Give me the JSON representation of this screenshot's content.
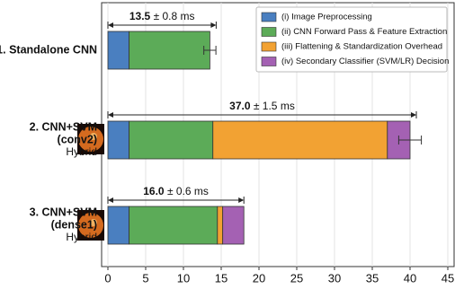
{
  "chart_data": {
    "type": "stacked-bar-horizontal",
    "categories": [
      [
        "1. Standalone CNN"
      ],
      [
        "2. CNN+SVM",
        "(conv2)",
        "Hybrid"
      ],
      [
        "3. CNN+SVM",
        "(dense1)",
        "Hybrid"
      ]
    ],
    "series": [
      {
        "name": "(i) Image Preprocessing",
        "color": "#4a7fc0",
        "values": [
          2.8,
          2.8,
          2.8
        ]
      },
      {
        "name": "(ii) CNN Forward Pass & Feature Extraction",
        "color": "#5cab58",
        "values": [
          10.7,
          11.1,
          11.7
        ]
      },
      {
        "name": "(iii) Flattening & Standardization Overhead",
        "color": "#f2a233",
        "values": [
          0,
          23.1,
          0.7
        ]
      },
      {
        "name": "(iv) Secondary Classifier (SVM/LR) Decision",
        "color": "#a461b3",
        "values": [
          0,
          3.0,
          2.8
        ]
      }
    ],
    "annotations": [
      {
        "value": 13.5,
        "error": 0.8,
        "unit": "ms"
      },
      {
        "value": 37.0,
        "error": 1.5,
        "unit": "ms"
      },
      {
        "value": 16.0,
        "error": 0.6,
        "unit": "ms"
      }
    ],
    "error_bars": [
      true,
      true,
      false
    ],
    "pm": "±",
    "xlim": [
      0,
      45
    ],
    "xticks": [
      0,
      5,
      10,
      15,
      20,
      25,
      30,
      35,
      40,
      45
    ],
    "grid": true,
    "legend": "upper right"
  }
}
